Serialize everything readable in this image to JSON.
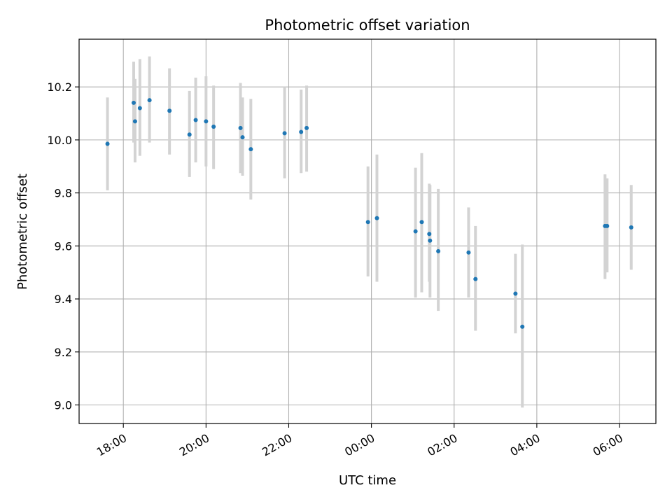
{
  "chart_data": {
    "type": "scatter",
    "title": "Photometric offset variation",
    "xlabel": "UTC time",
    "ylabel": "Photometric offset",
    "x_axis_kind": "time (hours)",
    "xlim": [
      16.93,
      30.88
    ],
    "ylim": [
      8.93,
      10.38
    ],
    "x_ticks": [
      {
        "value": 18,
        "label": "18:00"
      },
      {
        "value": 20,
        "label": "20:00"
      },
      {
        "value": 22,
        "label": "22:00"
      },
      {
        "value": 24,
        "label": "00:00"
      },
      {
        "value": 26,
        "label": "02:00"
      },
      {
        "value": 28,
        "label": "04:00"
      },
      {
        "value": 30,
        "label": "06:00"
      }
    ],
    "y_ticks": [
      {
        "value": 9.0,
        "label": "9.0"
      },
      {
        "value": 9.2,
        "label": "9.2"
      },
      {
        "value": 9.4,
        "label": "9.4"
      },
      {
        "value": 9.6,
        "label": "9.6"
      },
      {
        "value": 9.8,
        "label": "9.8"
      },
      {
        "value": 10.0,
        "label": "10.0"
      },
      {
        "value": 10.2,
        "label": "10.2"
      }
    ],
    "grid": true,
    "colors": {
      "point": "#1f77b4",
      "errorbar": "#d3d3d3",
      "grid": "#b0b0b0"
    },
    "series": [
      {
        "points": [
          {
            "x": "17:37",
            "y": 9.985,
            "ylow": 9.81,
            "yhigh": 10.16
          },
          {
            "x": "18:15",
            "y": 10.14,
            "ylow": 9.99,
            "yhigh": 10.295
          },
          {
            "x": "18:17",
            "y": 10.07,
            "ylow": 9.915,
            "yhigh": 10.23
          },
          {
            "x": "18:24",
            "y": 10.12,
            "ylow": 9.94,
            "yhigh": 10.305
          },
          {
            "x": "18:38",
            "y": 10.15,
            "ylow": 9.99,
            "yhigh": 10.315
          },
          {
            "x": "19:07",
            "y": 10.11,
            "ylow": 9.945,
            "yhigh": 10.27
          },
          {
            "x": "19:36",
            "y": 10.02,
            "ylow": 9.86,
            "yhigh": 10.185
          },
          {
            "x": "19:45",
            "y": 10.075,
            "ylow": 9.915,
            "yhigh": 10.235
          },
          {
            "x": "20:00",
            "y": 10.07,
            "ylow": 9.9,
            "yhigh": 10.24
          },
          {
            "x": "20:11",
            "y": 10.05,
            "ylow": 9.89,
            "yhigh": 10.205
          },
          {
            "x": "20:50",
            "y": 10.045,
            "ylow": 9.875,
            "yhigh": 10.215
          },
          {
            "x": "20:53",
            "y": 10.01,
            "ylow": 9.865,
            "yhigh": 10.16
          },
          {
            "x": "21:05",
            "y": 9.965,
            "ylow": 9.775,
            "yhigh": 10.155
          },
          {
            "x": "21:54",
            "y": 10.025,
            "ylow": 9.855,
            "yhigh": 10.2
          },
          {
            "x": "22:18",
            "y": 10.03,
            "ylow": 9.875,
            "yhigh": 10.19
          },
          {
            "x": "22:26",
            "y": 10.045,
            "ylow": 9.88,
            "yhigh": 10.205
          },
          {
            "x": "23:55",
            "y": 9.69,
            "ylow": 9.485,
            "yhigh": 9.9
          },
          {
            "x": "00:08",
            "y": 9.705,
            "ylow": 9.465,
            "yhigh": 9.945
          },
          {
            "x": "01:04",
            "y": 9.655,
            "ylow": 9.405,
            "yhigh": 9.895
          },
          {
            "x": "01:13",
            "y": 9.69,
            "ylow": 9.425,
            "yhigh": 9.95
          },
          {
            "x": "01:24",
            "y": 9.645,
            "ylow": 9.465,
            "yhigh": 9.835
          },
          {
            "x": "01:25",
            "y": 9.62,
            "ylow": 9.405,
            "yhigh": 9.83
          },
          {
            "x": "01:37",
            "y": 9.58,
            "ylow": 9.355,
            "yhigh": 9.815
          },
          {
            "x": "02:21",
            "y": 9.575,
            "ylow": 9.405,
            "yhigh": 9.745
          },
          {
            "x": "02:31",
            "y": 9.475,
            "ylow": 9.28,
            "yhigh": 9.675
          },
          {
            "x": "03:29",
            "y": 9.42,
            "ylow": 9.27,
            "yhigh": 9.57
          },
          {
            "x": "03:39",
            "y": 9.295,
            "ylow": 8.99,
            "yhigh": 9.605
          },
          {
            "x": "05:39",
            "y": 9.675,
            "ylow": 9.475,
            "yhigh": 9.87
          },
          {
            "x": "05:42",
            "y": 9.675,
            "ylow": 9.5,
            "yhigh": 9.855
          },
          {
            "x": "06:17",
            "y": 9.67,
            "ylow": 9.51,
            "yhigh": 9.83
          }
        ]
      }
    ]
  }
}
